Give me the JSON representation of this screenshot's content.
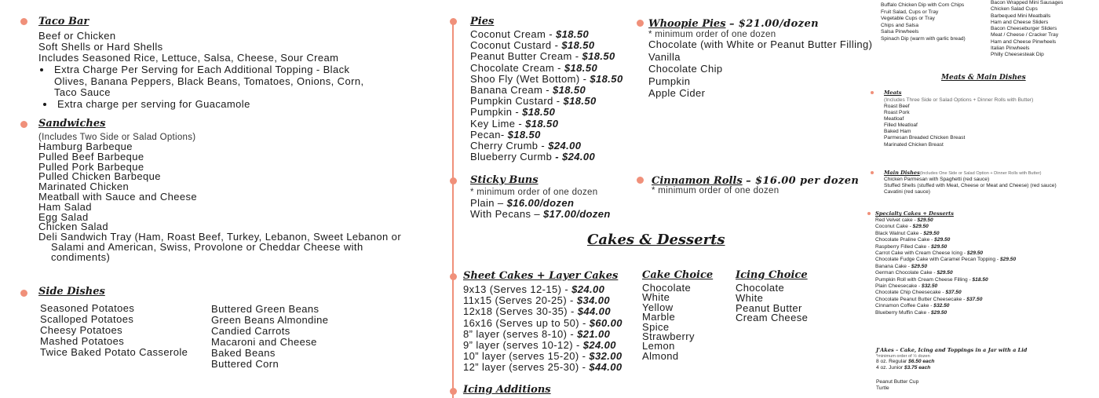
{
  "taco_bar": {
    "title": "Taco Bar",
    "lines": [
      "Beef or Chicken",
      "Soft Shells or Hard Shells",
      "Includes Seasoned Rice, Lettuce, Salsa, Cheese, Sour Cream"
    ],
    "bullets": [
      "Extra Charge Per Serving for Each Additional Topping - Black Olives, Banana Peppers, Black Beans, Tomatoes, Onions, Corn, Taco Sauce",
      "Extra charge per serving for Guacamole"
    ]
  },
  "sandwiches": {
    "title": "Sandwiches",
    "note": "(Includes Two Side or Salad Options)",
    "items": [
      "Hamburg Barbeque",
      "Pulled Beef Barbeque",
      "Pulled Pork Barbeque",
      "Pulled Chicken Barbeque",
      "Marinated Chicken",
      "Meatball with Sauce and Cheese",
      "Ham Salad",
      "Egg Salad",
      "Chicken Salad",
      "Deli Sandwich Tray (Ham, Roast Beef, Turkey, Lebanon, Sweet Lebanon or Salami and American, Swiss, Provolone or Cheddar Cheese with condiments)"
    ]
  },
  "side_dishes": {
    "title": "Side Dishes",
    "col1": [
      "Seasoned Potatoes",
      "Scalloped Potatoes",
      "Cheesy Potatoes",
      "Mashed Potatoes",
      "Twice Baked Potato Casserole"
    ],
    "col2": [
      "Buttered Green Beans",
      "Green Beans Almondine",
      "Candied Carrots",
      "Macaroni and Cheese",
      "Baked Beans",
      "Buttered Corn"
    ]
  },
  "pies": {
    "title": "Pies",
    "items": [
      {
        "name": "Coconut Cream -",
        "price": "$18.50"
      },
      {
        "name": "Coconut Custard -",
        "price": "$18.50"
      },
      {
        "name": "Peanut Butter Cream -",
        "price": "$18.50"
      },
      {
        "name": "Chocolate Cream -",
        "price": "$18.50"
      },
      {
        "name": "Shoo Fly (Wet Bottom) -",
        "price": "$18.50"
      },
      {
        "name": "Banana Cream -",
        "price": "$18.50"
      },
      {
        "name": "Pumpkin Custard -",
        "price": "$18.50"
      },
      {
        "name": "Pumpkin -",
        "price": "$18.50"
      },
      {
        "name": "Key Lime -",
        "price": "$18.50"
      },
      {
        "name": "Pecan-",
        "price": "$18.50"
      },
      {
        "name": "Cherry Crumb -",
        "price": "$24.00"
      },
      {
        "name": "Blueberry Curmb",
        "price": "- $24.00"
      }
    ]
  },
  "sticky_buns": {
    "title": "Sticky Buns",
    "note": "* minimum order of one dozen",
    "items": [
      {
        "name": "Plain –",
        "price": "$16.00/dozen"
      },
      {
        "name": "With Pecans –",
        "price": "$17.00/dozen"
      }
    ]
  },
  "whoopie_pies": {
    "title": "Whoopie Pies",
    "price": "– $21.00/dozen",
    "note": "* minimum order of one dozen",
    "items": [
      "Chocolate (with White or Peanut Butter Filling)",
      "Vanilla",
      "Chocolate Chip",
      "Pumpkin",
      "Apple Cider"
    ]
  },
  "cinnamon_rolls": {
    "title": "Cinnamon Rolls",
    "price": "– $16.00 per dozen",
    "note": "* minimum order of one dozen"
  },
  "cakes_desserts": {
    "title": "Cakes & Desserts",
    "sheet_cakes": {
      "title": "Sheet Cakes + Layer Cakes",
      "items": [
        {
          "name": "9x13 (Serves 12-15) -",
          "price": "$24.00"
        },
        {
          "name": "11x15 (Serves 20-25) -",
          "price": "$34.00"
        },
        {
          "name": "12x18 (Serves 30-35) -",
          "price": "$44.00"
        },
        {
          "name": "16x16 (Serves up to 50) -",
          "price": "$60.00"
        },
        {
          "name": "8” layer (serves 8-10) -",
          "price": "$21.00"
        },
        {
          "name": "9” layer (serves 10-12) -",
          "price": "$24.00"
        },
        {
          "name": "10” layer (serves 15-20) -",
          "price": "$32.00"
        },
        {
          "name": "12” layer (serves 25-30) -",
          "price": "$44.00"
        }
      ]
    },
    "cake_choice": {
      "title": "Cake Choice",
      "items": [
        "Chocolate",
        "White",
        "Yellow",
        "Marble",
        "Spice",
        "Strawberry",
        "Lemon",
        "Almond"
      ]
    },
    "icing_choice": {
      "title": "Icing Choice",
      "items": [
        "Chocolate",
        "White",
        "Peanut Butter",
        "Cream Cheese"
      ]
    },
    "icing_additions": {
      "title": "Icing Additions"
    }
  },
  "right_column": {
    "appetizers_left": [
      "Buffalo Chicken Dip with Corn Chips",
      "Fruit Salad, Cups or Tray",
      "Vegetable Cups or Tray",
      "Chips and Salsa",
      "Salsa Pinwheels",
      "Spinach Dip (warm with garlic bread)"
    ],
    "appetizers_right": [
      "Bacon Wrapped Mini Sausages",
      "Chicken Salad Cups",
      "Barbequed Mini Meatballs",
      "Ham and Cheese Sliders",
      "Bacon Cheeseburger Sliders",
      "Meat / Cheese / Cracker Tray",
      "Ham and Cheese Pinwheels",
      "Italian Pinwheels",
      "Philly Cheesesteak Dip"
    ],
    "heading": "Meats & Main Dishes",
    "meats": {
      "title": "Meats",
      "note": "(Includes Three Side or Salad Options + Dinner Rolls with Butter)",
      "items": [
        "Roast Beef",
        "Roast Pork",
        "Meatloaf",
        "Filled Meatloaf",
        "Baked Ham",
        "Parmesan Breaded Chicken Breast",
        "Marinated Chicken Breast"
      ]
    },
    "main_dishes": {
      "title": "Main Dishes",
      "note": "(Includes One Side or Salad Option + Dinner Rolls with Butter)",
      "items": [
        "Chicken Parmesan with Spaghetti (red sauce)",
        "Stuffed Shells (stuffed with Meat, Cheese or Meat and Cheese) (red sauce)",
        "Cavatini (red sauce)"
      ]
    },
    "specialty": {
      "title": "Specialty Cakes + Desserts",
      "items": [
        {
          "name": "Red Velvet cake -",
          "price": "$29.50"
        },
        {
          "name": "Coconut Cake -",
          "price": "$29.50"
        },
        {
          "name": "Black Walnut Cake -",
          "price": "$29.50"
        },
        {
          "name": "Chocolate Praline Cake -",
          "price": "$29.50"
        },
        {
          "name": "Raspberry Filled Cake -",
          "price": "$29.50"
        },
        {
          "name": "Carrot Cake with Cream Cheese Icing -",
          "price": "$29.50"
        },
        {
          "name": "Chocolate Fudge Cake with Caramel Pecan Topping -",
          "price": "$29.50"
        },
        {
          "name": "Banana Cake -",
          "price": "$29.50"
        },
        {
          "name": "German Chocolate Cake -",
          "price": "$29.50"
        },
        {
          "name": "Pumpkin Roll with Cream Cheese Filling -",
          "price": "$18.50"
        },
        {
          "name": "Plain Cheesecake -",
          "price": "$32.50"
        },
        {
          "name": "Chocolate Chip Cheesecake -",
          "price": "$37.50"
        },
        {
          "name": "Chocolate Peanut Butter Cheesecake -",
          "price": "$37.50"
        },
        {
          "name": "Cinnamon Coffee Cake -",
          "price": "$32.50"
        },
        {
          "name": "Blueberry Muffin Cake -",
          "price": "$29.50"
        }
      ]
    },
    "jakes": {
      "title": "J'Akes – Cake, Icing and Toppings in a Jar with a Lid",
      "note": "*minimum order of ½ dozen",
      "items": [
        {
          "name": "8 oz. Regular",
          "price": "$6.50 each"
        },
        {
          "name": "4 oz. Junior",
          "price": "$3.75 each"
        }
      ],
      "flavors": [
        "Peanut Butter Cup",
        "Turtle"
      ]
    }
  }
}
